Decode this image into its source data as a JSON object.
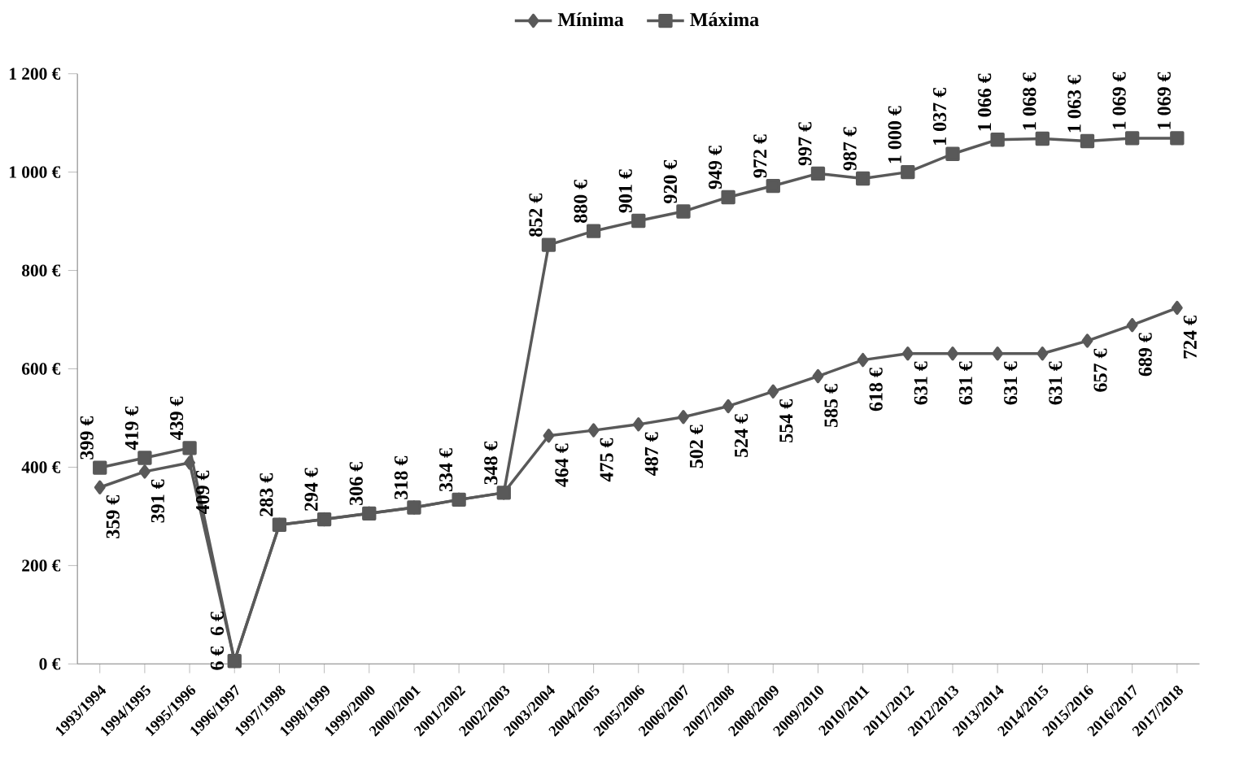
{
  "chart_data": {
    "type": "line",
    "categories": [
      "1993/1994",
      "1994/1995",
      "1995/1996",
      "1996/1997",
      "1997/1998",
      "1998/1999",
      "1999/2000",
      "2000/2001",
      "2001/2002",
      "2002/2003",
      "2003/2004",
      "2004/2005",
      "2005/2006",
      "2006/2007",
      "2007/2008",
      "2008/2009",
      "2009/2010",
      "2010/2011",
      "2011/2012",
      "2012/2013",
      "2013/2014",
      "2014/2015",
      "2015/2016",
      "2016/2017",
      "2017/2018"
    ],
    "series": [
      {
        "name": "Mínima",
        "color": "#595959",
        "marker": "diamond",
        "values": [
          359,
          391,
          409,
          6,
          283,
          294,
          306,
          318,
          334,
          348,
          464,
          475,
          487,
          502,
          524,
          554,
          585,
          618,
          631,
          631,
          631,
          631,
          657,
          689,
          724
        ],
        "value_labels": [
          "359 €",
          "391 €",
          "409 €",
          "6 €",
          null,
          null,
          null,
          null,
          null,
          null,
          "464 €",
          "475 €",
          "487 €",
          "502 €",
          "524 €",
          "554 €",
          "585 €",
          "618 €",
          "631 €",
          "631 €",
          "631 €",
          "631 €",
          "657 €",
          "689 €",
          "724 €"
        ]
      },
      {
        "name": "Máxima",
        "color": "#595959",
        "marker": "square",
        "values": [
          399,
          419,
          439,
          6,
          283,
          294,
          306,
          318,
          334,
          348,
          852,
          880,
          901,
          920,
          949,
          972,
          997,
          987,
          1000,
          1037,
          1066,
          1068,
          1063,
          1069,
          1069
        ],
        "value_labels": [
          "399 €",
          "419 €",
          "439 €",
          "6 €",
          "283 €",
          "294 €",
          "306 €",
          "318 €",
          "334 €",
          "348 €",
          "852 €",
          "880 €",
          "901 €",
          "920 €",
          "949 €",
          "972 €",
          "997 €",
          "987 €",
          "1 000 €",
          "1 037 €",
          "1 066 €",
          "1 068 €",
          "1 063 €",
          "1 069 €",
          "1 069 €"
        ]
      }
    ],
    "ylim": [
      0,
      1200
    ],
    "yticks": [
      {
        "value": 0,
        "label": "0 €"
      },
      {
        "value": 200,
        "label": "200 €"
      },
      {
        "value": 400,
        "label": "400 €"
      },
      {
        "value": 600,
        "label": "600 €"
      },
      {
        "value": 800,
        "label": "800 €"
      },
      {
        "value": 1000,
        "label": "1 000 €"
      },
      {
        "value": 1200,
        "label": "1 200 €"
      }
    ],
    "legend": "top",
    "grid": false,
    "line_style": "solid"
  }
}
